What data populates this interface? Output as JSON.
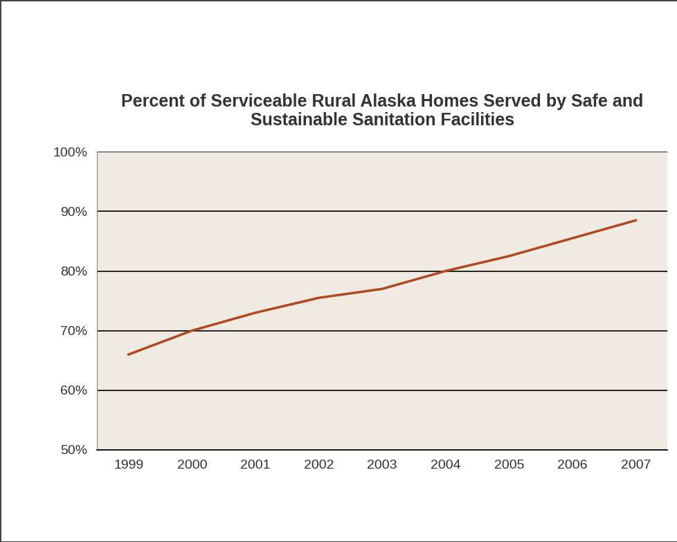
{
  "chart_data": {
    "type": "line",
    "title": "Percent of Serviceable Rural Alaska Homes Served by Safe and Sustainable Sanitation Facilities",
    "categories": [
      "1999",
      "2000",
      "2001",
      "2002",
      "2003",
      "2004",
      "2005",
      "2006",
      "2007"
    ],
    "values": [
      66,
      70,
      73,
      75.5,
      77,
      80,
      82.5,
      85.5,
      88.5
    ],
    "color": "#b4461c",
    "ylim": [
      50,
      100
    ],
    "yticks": [
      {
        "value": 50,
        "label": "50%"
      },
      {
        "value": 60,
        "label": "60%"
      },
      {
        "value": 70,
        "label": "70%"
      },
      {
        "value": 80,
        "label": "80%"
      },
      {
        "value": 90,
        "label": "90%"
      },
      {
        "value": 100,
        "label": "100%"
      }
    ],
    "grid": true
  }
}
